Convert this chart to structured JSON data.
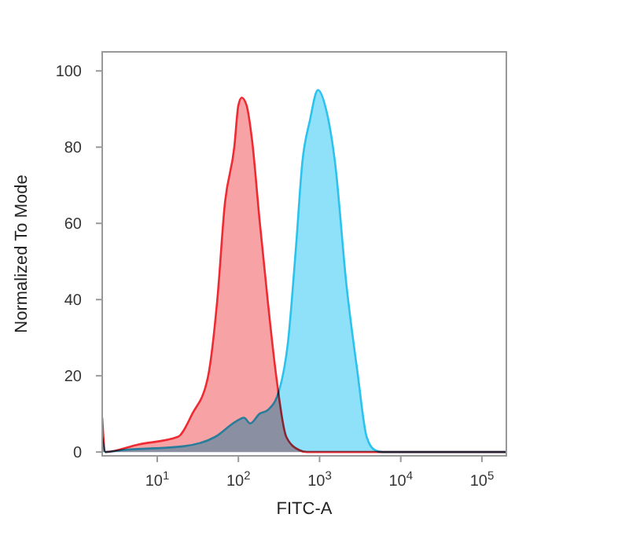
{
  "chart_data": {
    "type": "area",
    "xlabel": "FITC-A",
    "ylabel": "Normalized To Mode",
    "log": "x",
    "grid": false,
    "xlim": [
      2.1,
      200000
    ],
    "ylim": [
      -1,
      105
    ],
    "xticks": [
      {
        "value": 10,
        "label": "10$^{1}$"
      },
      {
        "value": 100,
        "label": "10$^{2}$"
      },
      {
        "value": 1000,
        "label": "10$^{3}$"
      },
      {
        "value": 10000,
        "label": "10$^{4}$"
      },
      {
        "value": 100000,
        "label": "10$^{5}$"
      }
    ],
    "yticks": [
      0,
      20,
      40,
      60,
      80,
      100
    ],
    "series": [
      {
        "color": "#f7a3a6",
        "x": [
          2.1,
          2.3,
          5.9,
          18,
          27,
          42,
          55,
          68,
          89,
          100,
          110,
          126,
          147,
          182,
          229,
          288,
          389,
          562,
          700,
          200000
        ],
        "values": [
          9,
          0,
          2,
          4,
          10,
          19.5,
          40,
          65,
          80,
          91,
          93,
          91,
          82,
          61,
          40,
          21,
          4,
          0.5,
          0,
          0
        ]
      },
      {
        "color": "#8fe1f9",
        "x": [
          2.1,
          2.3,
          3.7,
          21,
          52,
          93,
          117,
          140,
          182,
          230,
          316,
          409,
          513,
          613,
          760,
          955,
          1200,
          1550,
          2140,
          2930,
          3800,
          4800,
          6000,
          200000
        ],
        "values": [
          4,
          0,
          0.5,
          1.5,
          4,
          8,
          9,
          7.5,
          10,
          11,
          16,
          29,
          54,
          76,
          87,
          95,
          90,
          76,
          44,
          21,
          4,
          0.5,
          0,
          0
        ]
      }
    ]
  }
}
